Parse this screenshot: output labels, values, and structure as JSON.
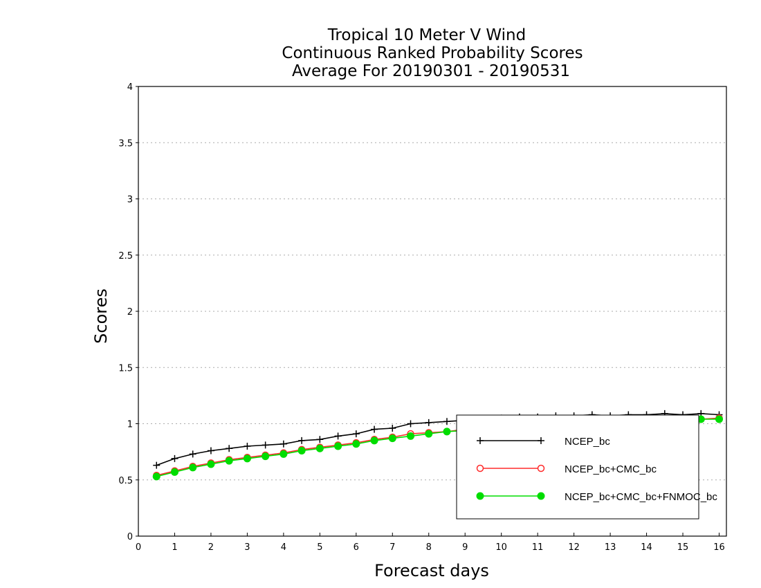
{
  "chart_data": {
    "type": "line",
    "title_lines": [
      "Tropical 10 Meter V Wind",
      "Continuous Ranked Probability Scores",
      "Average For 20190301 - 20190531"
    ],
    "xlabel": "Forecast days",
    "ylabel": "Scores",
    "xlim": [
      0,
      16.2
    ],
    "ylim": [
      0,
      4
    ],
    "xticks": [
      0,
      1,
      2,
      3,
      4,
      5,
      6,
      7,
      8,
      9,
      10,
      11,
      12,
      13,
      14,
      15,
      16
    ],
    "xtick_labels": [
      "0",
      "1",
      "2",
      "3",
      "4",
      "5",
      "6",
      "7",
      "8",
      "9",
      "10",
      "11",
      "12",
      "13",
      "14",
      "15",
      "16"
    ],
    "yticks": [
      0,
      0.5,
      1,
      1.5,
      2,
      2.5,
      3,
      3.5,
      4
    ],
    "ytick_labels": [
      "0",
      "0.5",
      "1",
      "1.5",
      "2",
      "2.5",
      "3",
      "3.5",
      "4"
    ],
    "grid": "horizontal-dotted",
    "legend_position": "bottom-right",
    "x": [
      0.5,
      1,
      1.5,
      2,
      2.5,
      3,
      3.5,
      4,
      4.5,
      5,
      5.5,
      6,
      6.5,
      7,
      7.5,
      8,
      8.5,
      9,
      9.5,
      10,
      10.5,
      11,
      11.5,
      12,
      12.5,
      13,
      13.5,
      14,
      14.5,
      15,
      15.5,
      16
    ],
    "series": [
      {
        "name": "NCEP_bc",
        "color": "#000000",
        "marker": "plus",
        "values": [
          0.63,
          0.69,
          0.73,
          0.76,
          0.78,
          0.8,
          0.81,
          0.82,
          0.85,
          0.86,
          0.89,
          0.91,
          0.95,
          0.96,
          1.0,
          1.01,
          1.02,
          1.03,
          1.04,
          1.05,
          1.06,
          1.06,
          1.07,
          1.07,
          1.08,
          1.07,
          1.08,
          1.08,
          1.09,
          1.08,
          1.09,
          1.08
        ]
      },
      {
        "name": "NCEP_bc+CMC_bc",
        "color": "#ff2a2a",
        "marker": "open-circle",
        "values": [
          0.54,
          0.58,
          0.62,
          0.65,
          0.68,
          0.7,
          0.72,
          0.74,
          0.77,
          0.79,
          0.81,
          0.83,
          0.86,
          0.88,
          0.91,
          0.92,
          0.93,
          0.95,
          0.96,
          0.97,
          0.98,
          0.99,
          1.0,
          1.0,
          1.01,
          1.01,
          1.02,
          1.02,
          1.03,
          1.03,
          1.04,
          1.05
        ]
      },
      {
        "name": "NCEP_bc+CMC_bc+FNMOC_bc",
        "color": "#00dd00",
        "marker": "filled-circle",
        "values": [
          0.53,
          0.57,
          0.61,
          0.64,
          0.67,
          0.69,
          0.71,
          0.73,
          0.76,
          0.78,
          0.8,
          0.82,
          0.85,
          0.87,
          0.89,
          0.91,
          0.93,
          0.94,
          0.95,
          0.96,
          0.97,
          0.98,
          0.99,
          0.99,
          1.0,
          1.01,
          1.01,
          1.02,
          1.02,
          1.03,
          1.04,
          1.04
        ]
      }
    ]
  }
}
